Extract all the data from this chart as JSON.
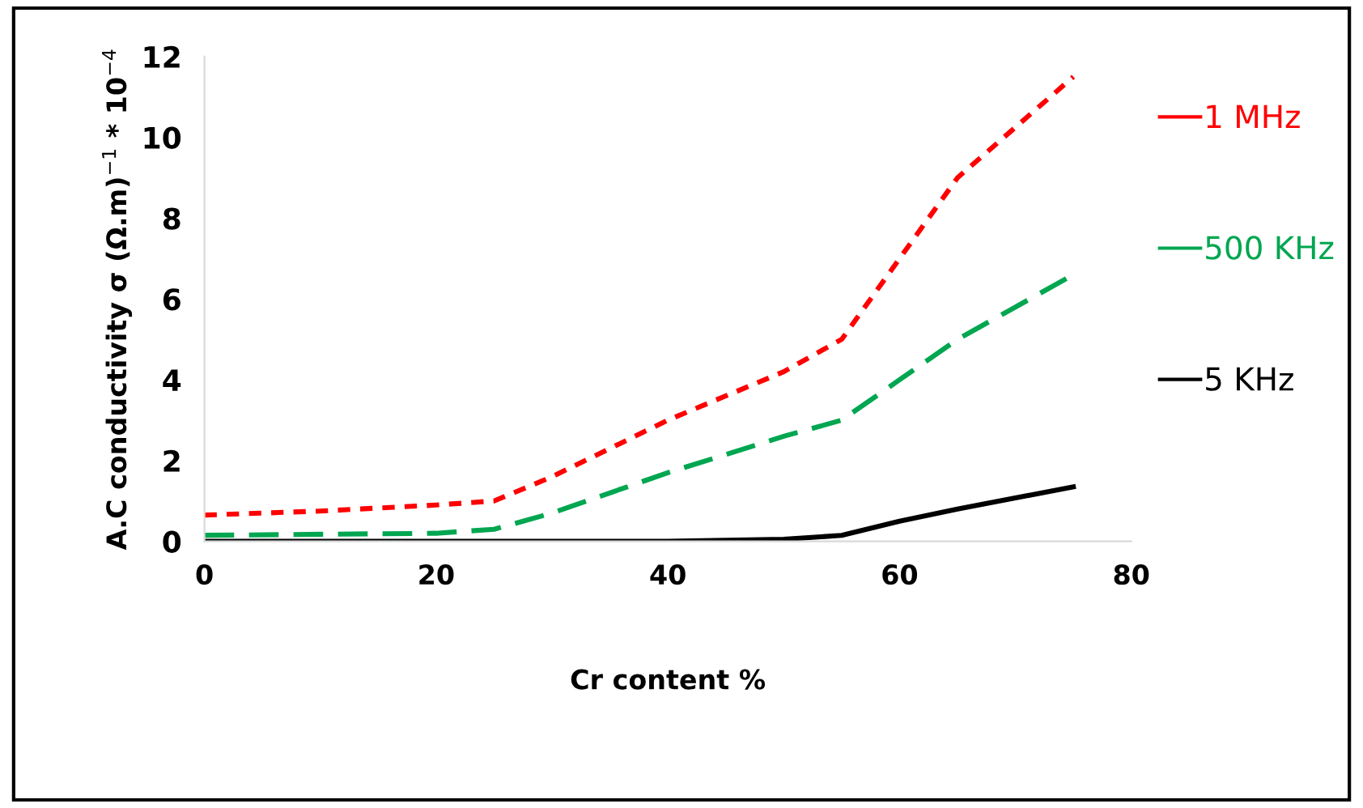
{
  "chart_data": {
    "type": "line",
    "xlabel": "Cr content %",
    "ylabel": "A.C conductivity σ (Ω.m)$^{−1}$ * 10$^{−4}$",
    "xlim": [
      0,
      80
    ],
    "xticks": [
      0,
      20,
      40,
      60,
      80
    ],
    "ylim": [
      0,
      12
    ],
    "yticks": [
      0,
      2,
      4,
      6,
      8,
      10,
      12
    ],
    "grid": false,
    "legend": "right",
    "series": [
      {
        "name": "1 MHz",
        "color": "#ff0000",
        "line_style": "dotted",
        "x": [
          0,
          10,
          20,
          25,
          30,
          40,
          50,
          55,
          60,
          65,
          75
        ],
        "values": [
          0.65,
          0.75,
          0.9,
          1.0,
          1.6,
          3.0,
          4.2,
          5.0,
          7.0,
          9.0,
          11.5
        ]
      },
      {
        "name": "500 KHz",
        "color": "#00a650",
        "line_style": "dashed",
        "x": [
          0,
          20,
          25,
          30,
          40,
          50,
          55,
          60,
          65,
          75
        ],
        "values": [
          0.15,
          0.2,
          0.3,
          0.7,
          1.7,
          2.6,
          3.0,
          4.0,
          5.0,
          6.6
        ]
      },
      {
        "name": "5 KHz",
        "color": "#000000",
        "line_style": "solid",
        "x": [
          0,
          40,
          50,
          55,
          60,
          65,
          75
        ],
        "values": [
          0,
          0,
          0.05,
          0.15,
          0.5,
          0.8,
          1.35
        ]
      }
    ]
  }
}
